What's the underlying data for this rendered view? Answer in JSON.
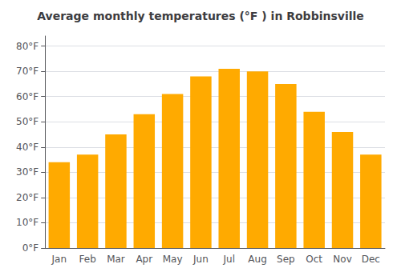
{
  "chart_data": {
    "type": "bar",
    "title": "Average monthly temperatures (°F ) in Robbinsville",
    "categories": [
      "Jan",
      "Feb",
      "Mar",
      "Apr",
      "May",
      "Jun",
      "Jul",
      "Aug",
      "Sep",
      "Oct",
      "Nov",
      "Dec"
    ],
    "values": [
      34,
      37,
      45,
      53,
      61,
      68,
      71,
      70,
      65,
      54,
      46,
      37
    ],
    "color": "#FFAA00",
    "ylim": [
      0,
      84
    ],
    "yticks": [
      {
        "value": 0,
        "label": "0°F"
      },
      {
        "value": 10,
        "label": "10°F"
      },
      {
        "value": 20,
        "label": "20°F"
      },
      {
        "value": 30,
        "label": "30°F"
      },
      {
        "value": 40,
        "label": "40°F"
      },
      {
        "value": 50,
        "label": "50°F"
      },
      {
        "value": 60,
        "label": "60°F"
      },
      {
        "value": 70,
        "label": "70°F"
      },
      {
        "value": 80,
        "label": "80°F"
      }
    ],
    "grid": true
  }
}
